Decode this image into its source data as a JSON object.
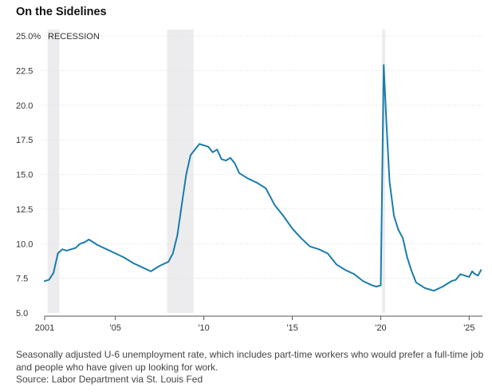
{
  "chart_data": {
    "type": "line",
    "title": "On the Sidelines",
    "caption": "Seasonally adjusted U-6 unemployment rate, which includes part-time workers who would prefer a full-time job and people who have given up looking for work.",
    "source": "Source: Labor Department via St. Louis Fed",
    "recession_label": "RECESSION",
    "xlim": [
      2001.0,
      2025.75
    ],
    "ylim": [
      5.0,
      25.0
    ],
    "y_ticks": [
      {
        "value": 25.0,
        "label": "25.0%"
      },
      {
        "value": 22.5,
        "label": "22.5"
      },
      {
        "value": 20.0,
        "label": "20.0"
      },
      {
        "value": 17.5,
        "label": "17.5"
      },
      {
        "value": 15.0,
        "label": "15.0"
      },
      {
        "value": 12.5,
        "label": "12.5"
      },
      {
        "value": 10.0,
        "label": "10.0"
      },
      {
        "value": 7.5,
        "label": "7.5"
      },
      {
        "value": 5.0,
        "label": "5.0"
      }
    ],
    "x_ticks": [
      {
        "value": 2001,
        "label": "2001"
      },
      {
        "value": 2005,
        "label": "'05"
      },
      {
        "value": 2010,
        "label": "'10"
      },
      {
        "value": 2015,
        "label": "'15"
      },
      {
        "value": 2020,
        "label": "'20"
      },
      {
        "value": 2025,
        "label": "'25"
      }
    ],
    "grid": true,
    "recessions": [
      [
        2001.17,
        2001.83
      ],
      [
        2007.92,
        2009.42
      ],
      [
        2020.08,
        2020.25
      ]
    ],
    "line_color": "#1b7cab",
    "recession_color": "#ececee",
    "series": [
      {
        "name": "",
        "x": [
          2001.0,
          2001.25,
          2001.5,
          2001.75,
          2002.0,
          2002.25,
          2002.5,
          2002.75,
          2003.0,
          2003.25,
          2003.5,
          2003.75,
          2004.0,
          2004.5,
          2005.0,
          2005.5,
          2006.0,
          2006.5,
          2007.0,
          2007.5,
          2008.0,
          2008.25,
          2008.5,
          2008.75,
          2009.0,
          2009.25,
          2009.5,
          2009.75,
          2010.0,
          2010.25,
          2010.5,
          2010.75,
          2011.0,
          2011.25,
          2011.5,
          2011.75,
          2012.0,
          2012.5,
          2013.0,
          2013.5,
          2014.0,
          2014.5,
          2015.0,
          2015.5,
          2016.0,
          2016.5,
          2017.0,
          2017.5,
          2018.0,
          2018.5,
          2019.0,
          2019.5,
          2019.75,
          2020.0,
          2020.17,
          2020.33,
          2020.5,
          2020.75,
          2021.0,
          2021.25,
          2021.5,
          2021.75,
          2022.0,
          2022.25,
          2022.5,
          2022.75,
          2023.0,
          2023.5,
          2024.0,
          2024.25,
          2024.5,
          2024.75,
          2025.0,
          2025.17,
          2025.33,
          2025.5,
          2025.67
        ],
        "y": [
          7.3,
          7.4,
          7.9,
          9.3,
          9.6,
          9.5,
          9.6,
          9.7,
          10.0,
          10.1,
          10.3,
          10.1,
          9.9,
          9.6,
          9.3,
          9.0,
          8.6,
          8.3,
          8.0,
          8.4,
          8.7,
          9.3,
          10.6,
          12.8,
          15.0,
          16.4,
          16.8,
          17.2,
          17.1,
          17.0,
          16.6,
          16.8,
          16.1,
          16.0,
          16.2,
          15.8,
          15.1,
          14.7,
          14.4,
          14.0,
          12.8,
          12.0,
          11.1,
          10.4,
          9.8,
          9.6,
          9.3,
          8.5,
          8.1,
          7.8,
          7.3,
          7.0,
          6.9,
          7.0,
          22.9,
          18.5,
          14.5,
          12.0,
          11.0,
          10.4,
          9.0,
          8.0,
          7.2,
          7.0,
          6.8,
          6.7,
          6.6,
          6.9,
          7.3,
          7.4,
          7.8,
          7.7,
          7.6,
          8.0,
          7.8,
          7.7,
          8.1
        ]
      }
    ]
  }
}
